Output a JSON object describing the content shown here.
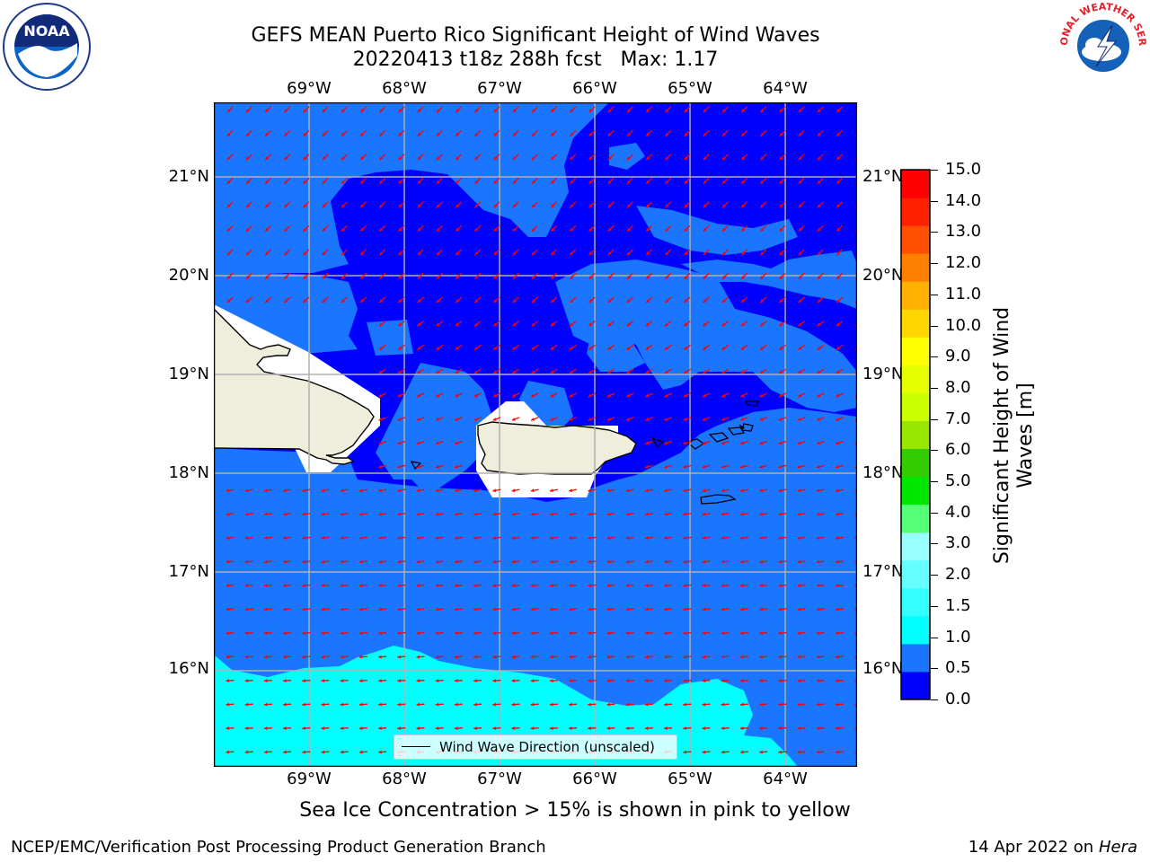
{
  "title": {
    "line1": "GEFS MEAN Puerto Rico Significant Height of Wind Waves",
    "line2": "20220413 t18z 288h fcst   Max: 1.17"
  },
  "map": {
    "lon_labels": [
      "69°W",
      "68°W",
      "67°W",
      "66°W",
      "65°W",
      "64°W"
    ],
    "lat_labels": [
      "21°N",
      "20°N",
      "19°N",
      "18°N",
      "17°N",
      "16°N"
    ],
    "extent": {
      "lon_min": -70.0,
      "lon_max": -63.25,
      "lat_min": 15.0,
      "lat_max": 21.75
    },
    "colors": {
      "ocean_low": "#0000ff",
      "ocean_mid": "#1a75ff",
      "ocean_high": "#00ffff",
      "land": "#efeedd",
      "arrow": "#ff0000",
      "grid": "#b0b0b0"
    }
  },
  "legend": {
    "label": "Wind Wave Direction (unscaled)"
  },
  "colorbar": {
    "label": "Significant Height of Wind Waves [m]",
    "ticks": [
      "0.0",
      "0.5",
      "1.0",
      "1.5",
      "2.0",
      "3.0",
      "4.0",
      "5.0",
      "6.0",
      "7.0",
      "8.0",
      "9.0",
      "10.0",
      "11.0",
      "12.0",
      "13.0",
      "14.0",
      "15.0"
    ],
    "colors": [
      "#0000ff",
      "#1a75ff",
      "#00ffff",
      "#33ffff",
      "#66ffff",
      "#99ffff",
      "#55ff77",
      "#00e600",
      "#33cc00",
      "#99e600",
      "#ccff00",
      "#e6ff00",
      "#ffff00",
      "#ffd700",
      "#ffb000",
      "#ff8000",
      "#ff5000",
      "#ff2000",
      "#ff0000"
    ]
  },
  "caption": "Sea Ice Concentration > 15% is shown in pink to yellow",
  "footer": {
    "left": "NCEP/EMC/Verification Post Processing Product Generation Branch",
    "right_date": "14 Apr 2022 on ",
    "right_host": "Hera"
  },
  "logos": {
    "left": "NOAA",
    "right": "NATIONAL WEATHER SERVICE"
  }
}
